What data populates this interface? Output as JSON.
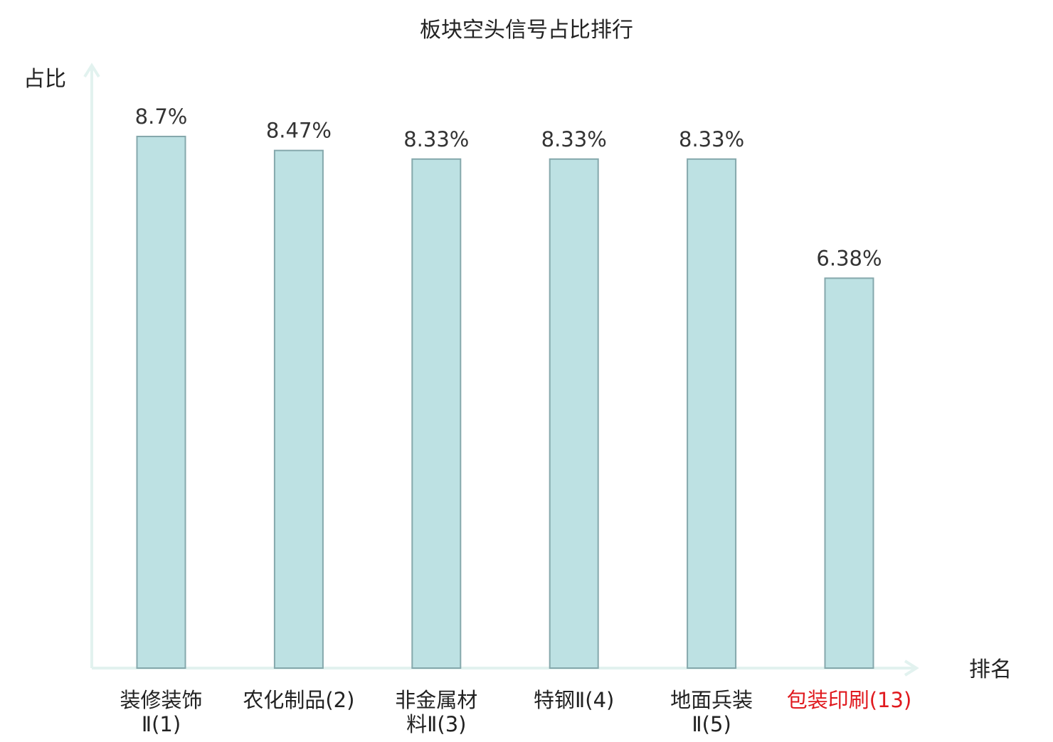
{
  "chart_data": {
    "type": "bar",
    "title": "板块空头信号占比排行",
    "ylabel": "占比",
    "xlabel": "排名",
    "ylim": [
      0,
      10
    ],
    "grid": false,
    "categories": [
      {
        "lines": [
          "装修装饰",
          "Ⅱ(1)"
        ],
        "highlight": false
      },
      {
        "lines": [
          "农化制品(2)"
        ],
        "highlight": false
      },
      {
        "lines": [
          "非金属材",
          "料Ⅱ(3)"
        ],
        "highlight": false
      },
      {
        "lines": [
          "特钢Ⅱ(4)"
        ],
        "highlight": false
      },
      {
        "lines": [
          "地面兵装",
          "Ⅱ(5)"
        ],
        "highlight": false
      },
      {
        "lines": [
          "包装印刷(13)"
        ],
        "highlight": true
      }
    ],
    "values": [
      8.7,
      8.47,
      8.33,
      8.33,
      8.33,
      6.38
    ],
    "value_labels": [
      "8.7%",
      "8.47%",
      "8.33%",
      "8.33%",
      "8.33%",
      "6.38%"
    ],
    "colors": {
      "bar_fill": "#bde1e3",
      "bar_stroke": "#85a8ac",
      "axis": "#e2f2ef",
      "text": "#222222",
      "highlight_text": "#e0191e"
    }
  }
}
